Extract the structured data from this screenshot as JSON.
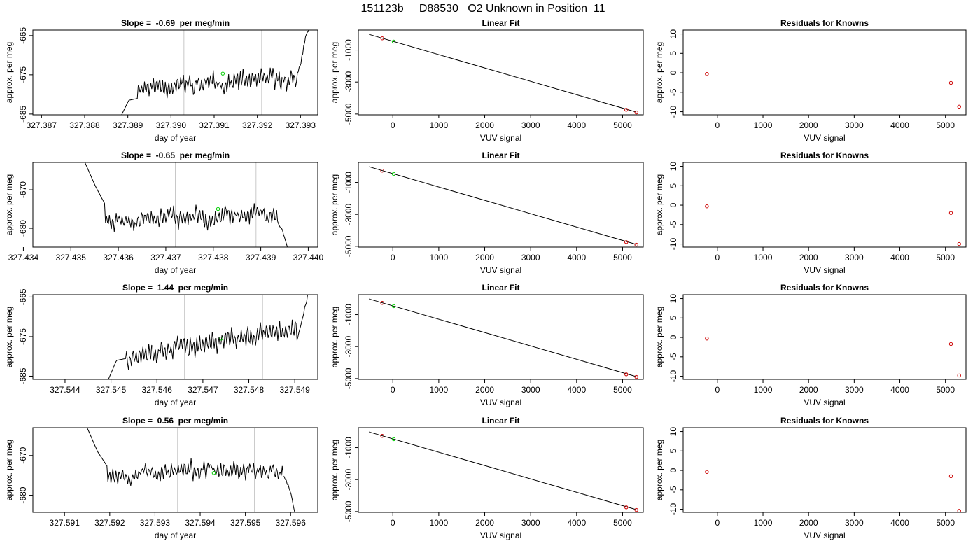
{
  "page_title": "151123b     D88530   O2 Unknown in Position  11",
  "colors": {
    "trace": "#000000",
    "grid_vline": "#c8c8c8",
    "known_point": "#cc0000",
    "unknown_point": "#00cc00"
  },
  "chart_data": [
    {
      "panel": "time-1",
      "type": "line",
      "title": "Slope =  -0.69  per meg/min",
      "xlabel": "day of year",
      "ylabel": "approx. per meg",
      "xlim": [
        327.3868,
        327.3934
      ],
      "ylim": [
        -685.2,
        -663.6
      ],
      "y_reversed": true,
      "xticks": [
        327.387,
        327.388,
        327.389,
        327.39,
        327.391,
        327.392,
        327.393
      ],
      "xtick_labels": [
        "327.387",
        "327.388",
        "327.389",
        "327.390",
        "327.391",
        "327.392",
        "327.393"
      ],
      "yticks": [
        -665,
        -675,
        -685
      ],
      "ytick_labels": [
        "-665",
        "-675",
        "-685"
      ],
      "vlines": [
        327.3903,
        327.3921
      ],
      "x_start": 327.3888,
      "x_end": 327.3932,
      "marker": {
        "x": 327.3912,
        "y": -674.7
      },
      "trace": {
        "start": -686.5,
        "ramp": [
          -681.5,
          -681.0
        ],
        "mean": -677.0,
        "trend": 2.0,
        "amp": 1.6,
        "tail": [
          -675.0,
          -671.0,
          -666.0,
          -663.0
        ],
        "seed": 11
      }
    },
    {
      "panel": "fit-1",
      "type": "scatter",
      "title": "Linear Fit",
      "xlabel": "VUV signal",
      "ylabel": "approx. per meg",
      "xlim": [
        -750,
        5450
      ],
      "ylim": [
        -5050,
        250
      ],
      "xticks": [
        0,
        1000,
        2000,
        3000,
        4000,
        5000
      ],
      "xtick_labels": [
        "0",
        "1000",
        "2000",
        "3000",
        "4000",
        "5000"
      ],
      "yticks": [
        -1000,
        -3000,
        -5000
      ],
      "ytick_labels": [
        "-1000",
        "-3000",
        "-5000"
      ],
      "line": [
        [
          -520,
          -15
        ],
        [
          5300,
          -4880
        ]
      ],
      "known": [
        [
          -230,
          -265
        ],
        [
          5080,
          -4735
        ],
        [
          5300,
          -4900
        ]
      ],
      "unknown": [
        [
          20,
          -470
        ]
      ]
    },
    {
      "panel": "resid-1",
      "type": "scatter",
      "title": "Residuals for Knowns",
      "xlabel": "VUV signal",
      "ylabel": "approx. per meg",
      "xlim": [
        -750,
        5450
      ],
      "ylim": [
        -10.8,
        11
      ],
      "xticks": [
        0,
        1000,
        2000,
        3000,
        4000,
        5000
      ],
      "xtick_labels": [
        "0",
        "1000",
        "2000",
        "3000",
        "4000",
        "5000"
      ],
      "yticks": [
        10,
        5,
        0,
        -5,
        -10
      ],
      "ytick_labels": [
        "10",
        "5",
        "0",
        "-5",
        "-10"
      ],
      "known": [
        [
          -230,
          -0.3
        ],
        [
          5120,
          -2.6
        ],
        [
          5300,
          -8.7
        ]
      ]
    },
    {
      "panel": "time-2",
      "type": "line",
      "title": "Slope =  -0.65  per meg/min",
      "xlabel": "day of year",
      "ylabel": "approx. per meg",
      "xlim": [
        327.4342,
        327.4402
      ],
      "ylim": [
        -684.9,
        -662.9
      ],
      "y_reversed": true,
      "xticks": [
        327.434,
        327.435,
        327.436,
        327.437,
        327.438,
        327.439,
        327.44
      ],
      "xtick_labels": [
        "327.434",
        "327.435",
        "327.436",
        "327.437",
        "327.438",
        "327.439",
        "327.440"
      ],
      "yticks": [
        -670,
        -680
      ],
      "ytick_labels": [
        "-670",
        "-680"
      ],
      "vlines": [
        327.4372,
        327.4389
      ],
      "x_start": 327.4353,
      "x_end": 327.4396,
      "marker": {
        "x": 327.4381,
        "y": -675.0
      },
      "trace": {
        "start": -663.0,
        "ramp": [
          -669.0,
          -674.0
        ],
        "mean": -677.0,
        "trend": 2.0,
        "amp": 1.6,
        "tail": [
          -678.0,
          -680.0,
          -683.0,
          -686.0
        ],
        "seed": 23
      }
    },
    {
      "panel": "fit-2",
      "type": "scatter",
      "title": "Linear Fit",
      "xlabel": "VUV signal",
      "ylabel": "approx. per meg",
      "xlim": [
        -750,
        5450
      ],
      "ylim": [
        -5050,
        250
      ],
      "xticks": [
        0,
        1000,
        2000,
        3000,
        4000,
        5000
      ],
      "xtick_labels": [
        "0",
        "1000",
        "2000",
        "3000",
        "4000",
        "5000"
      ],
      "yticks": [
        -1000,
        -3000,
        -5000
      ],
      "ytick_labels": [
        "-1000",
        "-3000",
        "-5000"
      ],
      "line": [
        [
          -520,
          -15
        ],
        [
          5300,
          -4880
        ]
      ],
      "known": [
        [
          -230,
          -265
        ],
        [
          5080,
          -4735
        ],
        [
          5300,
          -4900
        ]
      ],
      "unknown": [
        [
          20,
          -470
        ]
      ]
    },
    {
      "panel": "resid-2",
      "type": "scatter",
      "title": "Residuals for Knowns",
      "xlabel": "VUV signal",
      "ylabel": "approx. per meg",
      "xlim": [
        -750,
        5450
      ],
      "ylim": [
        -10.8,
        11
      ],
      "xticks": [
        0,
        1000,
        2000,
        3000,
        4000,
        5000
      ],
      "xtick_labels": [
        "0",
        "1000",
        "2000",
        "3000",
        "4000",
        "5000"
      ],
      "yticks": [
        10,
        5,
        0,
        -5,
        -10
      ],
      "ytick_labels": [
        "10",
        "5",
        "0",
        "-5",
        "-10"
      ],
      "known": [
        [
          -230,
          -0.3
        ],
        [
          5120,
          -2.0
        ],
        [
          5300,
          -10.0
        ]
      ]
    },
    {
      "panel": "time-3",
      "type": "line",
      "title": "Slope =  1.44  per meg/min",
      "xlabel": "day of year",
      "ylabel": "approx. per meg",
      "xlim": [
        327.5433,
        327.5495
      ],
      "ylim": [
        -685.8,
        -664.4
      ],
      "y_reversed": true,
      "xticks": [
        327.544,
        327.545,
        327.546,
        327.547,
        327.548,
        327.549
      ],
      "xtick_labels": [
        "327.544",
        "327.545",
        "327.546",
        "327.547",
        "327.548",
        "327.549"
      ],
      "yticks": [
        -665,
        -675,
        -685
      ],
      "ytick_labels": [
        "-665",
        "-675",
        "-685"
      ],
      "vlines": [
        327.5466,
        327.5483
      ],
      "x_start": 327.5449,
      "x_end": 327.5493,
      "marker": {
        "x": 327.5474,
        "y": -675.5
      },
      "trace": {
        "start": -687.0,
        "ramp": [
          -681.0,
          -680.5
        ],
        "mean": -676.5,
        "trend": 7.0,
        "amp": 1.8,
        "tail": [
          -676.0,
          -673.0,
          -668.0,
          -664.0
        ],
        "seed": 37
      }
    },
    {
      "panel": "fit-3",
      "type": "scatter",
      "title": "Linear Fit",
      "xlabel": "VUV signal",
      "ylabel": "approx. per meg",
      "xlim": [
        -750,
        5450
      ],
      "ylim": [
        -5050,
        250
      ],
      "xticks": [
        0,
        1000,
        2000,
        3000,
        4000,
        5000
      ],
      "xtick_labels": [
        "0",
        "1000",
        "2000",
        "3000",
        "4000",
        "5000"
      ],
      "yticks": [
        -1000,
        -3000,
        -5000
      ],
      "ytick_labels": [
        "-1000",
        "-3000",
        "-5000"
      ],
      "line": [
        [
          -520,
          -15
        ],
        [
          5300,
          -4880
        ]
      ],
      "known": [
        [
          -230,
          -265
        ],
        [
          5080,
          -4735
        ],
        [
          5300,
          -4900
        ]
      ],
      "unknown": [
        [
          20,
          -470
        ]
      ]
    },
    {
      "panel": "resid-3",
      "type": "scatter",
      "title": "Residuals for Knowns",
      "xlabel": "VUV signal",
      "ylabel": "approx. per meg",
      "xlim": [
        -750,
        5450
      ],
      "ylim": [
        -10.8,
        11
      ],
      "xticks": [
        0,
        1000,
        2000,
        3000,
        4000,
        5000
      ],
      "xtick_labels": [
        "0",
        "1000",
        "2000",
        "3000",
        "4000",
        "5000"
      ],
      "yticks": [
        10,
        5,
        0,
        -5,
        -10
      ],
      "ytick_labels": [
        "10",
        "5",
        "0",
        "-5",
        "-10"
      ],
      "known": [
        [
          -230,
          -0.3
        ],
        [
          5120,
          -1.7
        ],
        [
          5300,
          -9.8
        ]
      ]
    },
    {
      "panel": "time-4",
      "type": "line",
      "title": "Slope =  0.56  per meg/min",
      "xlabel": "day of year",
      "ylabel": "approx. per meg",
      "xlim": [
        327.5903,
        327.5966
      ],
      "ylim": [
        -684.3,
        -663.0
      ],
      "y_reversed": true,
      "xticks": [
        327.591,
        327.592,
        327.593,
        327.594,
        327.595,
        327.596
      ],
      "xtick_labels": [
        "327.591",
        "327.592",
        "327.593",
        "327.594",
        "327.595",
        "327.596"
      ],
      "yticks": [
        -670,
        -680
      ],
      "ytick_labels": [
        "-670",
        "-680"
      ],
      "vlines": [
        327.5935,
        327.5952
      ],
      "x_start": 327.5915,
      "x_end": 327.5961,
      "marker": {
        "x": 327.5943,
        "y": -674.4
      },
      "trace": {
        "start": -663.0,
        "ramp": [
          -669.0,
          -673.0
        ],
        "mean": -674.0,
        "trend": 0.8,
        "amp": 1.3,
        "tail": [
          -675.0,
          -676.5,
          -680.0,
          -685.0
        ],
        "seed": 53
      }
    },
    {
      "panel": "fit-4",
      "type": "scatter",
      "title": "Linear Fit",
      "xlabel": "VUV signal",
      "ylabel": "approx. per meg",
      "xlim": [
        -750,
        5450
      ],
      "ylim": [
        -5050,
        250
      ],
      "xticks": [
        0,
        1000,
        2000,
        3000,
        4000,
        5000
      ],
      "xtick_labels": [
        "0",
        "1000",
        "2000",
        "3000",
        "4000",
        "5000"
      ],
      "yticks": [
        -1000,
        -3000,
        -5000
      ],
      "ytick_labels": [
        "-1000",
        "-3000",
        "-5000"
      ],
      "line": [
        [
          -520,
          -15
        ],
        [
          5300,
          -4880
        ]
      ],
      "known": [
        [
          -230,
          -265
        ],
        [
          5080,
          -4735
        ],
        [
          5300,
          -4900
        ]
      ],
      "unknown": [
        [
          20,
          -470
        ]
      ]
    },
    {
      "panel": "resid-4",
      "type": "scatter",
      "title": "Residuals for Knowns",
      "xlabel": "VUV signal",
      "ylabel": "approx. per meg",
      "xlim": [
        -750,
        5450
      ],
      "ylim": [
        -10.8,
        11
      ],
      "xticks": [
        0,
        1000,
        2000,
        3000,
        4000,
        5000
      ],
      "xtick_labels": [
        "0",
        "1000",
        "2000",
        "3000",
        "4000",
        "5000"
      ],
      "yticks": [
        10,
        5,
        0,
        -5,
        -10
      ],
      "ytick_labels": [
        "10",
        "5",
        "0",
        "-5",
        "-10"
      ],
      "known": [
        [
          -230,
          -0.4
        ],
        [
          5120,
          -1.5
        ],
        [
          5300,
          -10.4
        ]
      ]
    }
  ]
}
